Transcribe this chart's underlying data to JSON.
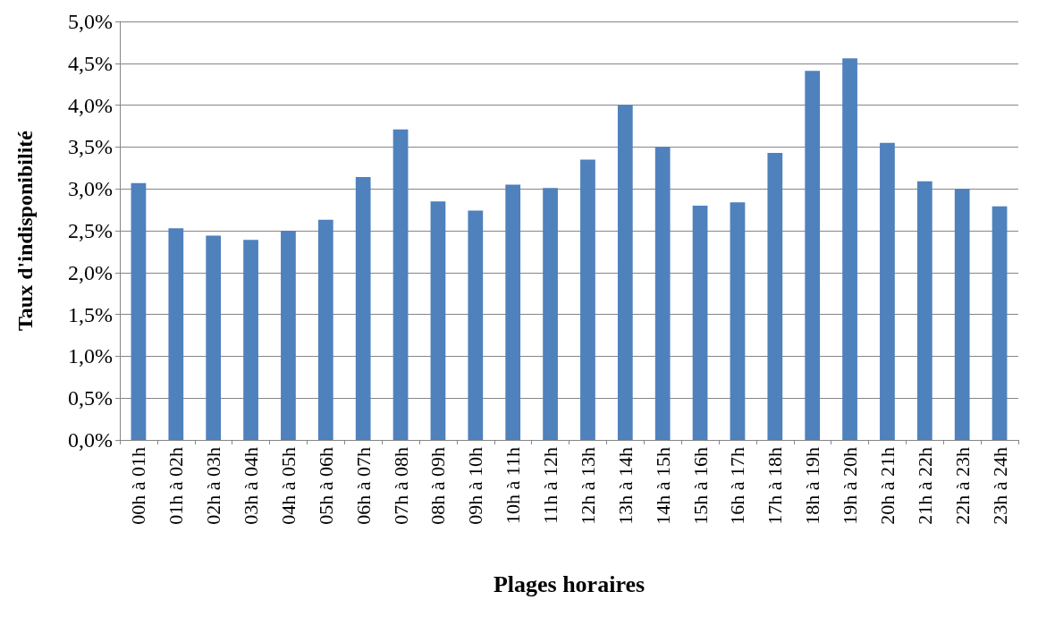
{
  "chart_data": {
    "type": "bar",
    "xlabel": "Plages horaires",
    "ylabel": "Taux d'indisponibilité",
    "categories": [
      "00h à 01h",
      "01h à 02h",
      "02h à 03h",
      "03h à 04h",
      "04h à 05h",
      "05h à 06h",
      "06h à 07h",
      "07h à 08h",
      "08h à 09h",
      "09h à 10h",
      "10h à 11h",
      "11h à 12h",
      "12h à 13h",
      "13h à 14h",
      "14h à 15h",
      "15h à 16h",
      "16h à 17h",
      "17h à 18h",
      "18h à 19h",
      "19h à 20h",
      "20h à 21h",
      "21h à 22h",
      "22h à 23h",
      "23h à 24h"
    ],
    "values": [
      3.07,
      2.53,
      2.44,
      2.39,
      2.5,
      2.63,
      3.14,
      3.71,
      2.85,
      2.74,
      3.05,
      3.01,
      3.35,
      4.0,
      3.5,
      2.8,
      2.84,
      3.43,
      4.41,
      4.56,
      3.55,
      3.09,
      3.0,
      2.79
    ],
    "color": "#4f81bd",
    "ylim": [
      0,
      5
    ],
    "yticks": [
      {
        "value": 0,
        "label": "0,0%"
      },
      {
        "value": 0.5,
        "label": "0,5%"
      },
      {
        "value": 1,
        "label": "1,0%"
      },
      {
        "value": 1.5,
        "label": "1,5%"
      },
      {
        "value": 2,
        "label": "2,0%"
      },
      {
        "value": 2.5,
        "label": "2,5%"
      },
      {
        "value": 3,
        "label": "3,0%"
      },
      {
        "value": 3.5,
        "label": "3,5%"
      },
      {
        "value": 4,
        "label": "4,0%"
      },
      {
        "value": 4.5,
        "label": "4,5%"
      },
      {
        "value": 5,
        "label": "5,0%"
      }
    ],
    "grid": "y"
  }
}
